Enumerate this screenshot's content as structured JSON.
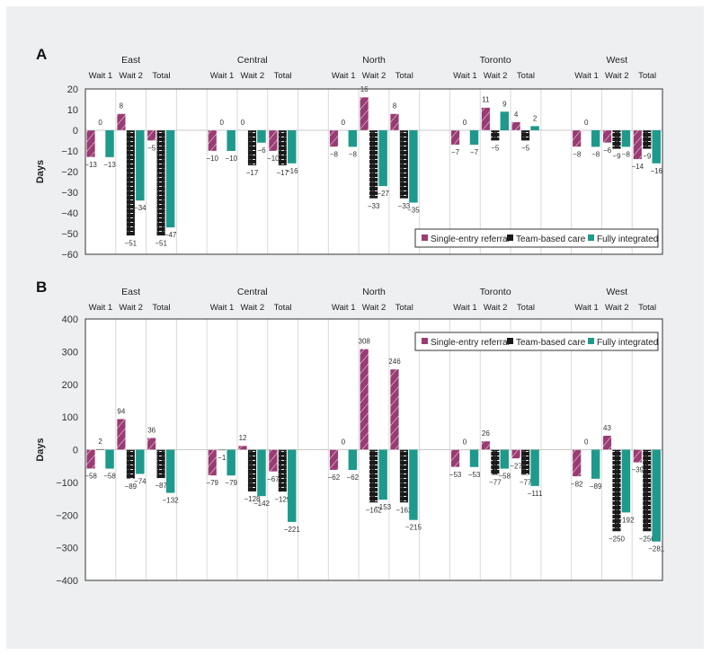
{
  "figure": {
    "legend": [
      {
        "key": "single",
        "label": "Single-entry referral",
        "color": "#9a3b74"
      },
      {
        "key": "team",
        "label": "Team-based care",
        "color": "#1a1a1a"
      },
      {
        "key": "full",
        "label": "Fully integrated",
        "color": "#1e9a8c"
      }
    ]
  },
  "chart_data": [
    {
      "panel": "A",
      "type": "bar",
      "ylabel": "Days",
      "ylim": [
        -60,
        20
      ],
      "yticks": [
        20,
        10,
        0,
        -10,
        -20,
        -30,
        -40,
        -50,
        -60
      ],
      "legend_position": "bottom-right",
      "grid": "vertical",
      "regions": [
        "East",
        "Central",
        "North",
        "Toronto",
        "West"
      ],
      "categories": [
        "Wait 1",
        "Wait 2",
        "Total"
      ],
      "series": [
        {
          "name": "Single-entry referral",
          "key": "single",
          "values": [
            [
              -13,
              8,
              -5
            ],
            [
              -10,
              0,
              -10
            ],
            [
              -8,
              16,
              8
            ],
            [
              -7,
              11,
              4
            ],
            [
              -8,
              -6,
              -14
            ]
          ]
        },
        {
          "name": "Team-based care",
          "key": "team",
          "values": [
            [
              0,
              -51,
              -51
            ],
            [
              0,
              -17,
              -17
            ],
            [
              0,
              -33,
              -33
            ],
            [
              0,
              -5,
              -5
            ],
            [
              0,
              -9,
              -9
            ]
          ]
        },
        {
          "name": "Fully integrated",
          "key": "full",
          "values": [
            [
              -13,
              -34,
              -47
            ],
            [
              -10,
              -6,
              -16
            ],
            [
              -8,
              -27,
              -35
            ],
            [
              -7,
              9,
              2
            ],
            [
              -8,
              -8,
              -16
            ]
          ]
        }
      ]
    },
    {
      "panel": "B",
      "type": "bar",
      "ylabel": "Days",
      "ylim": [
        -400,
        400
      ],
      "yticks": [
        400,
        300,
        200,
        100,
        0,
        -100,
        -200,
        -300,
        -400
      ],
      "legend_position": "top-right",
      "grid": "vertical",
      "regions": [
        "East",
        "Central",
        "North",
        "Toronto",
        "West"
      ],
      "categories": [
        "Wait 1",
        "Wait 2",
        "Total"
      ],
      "series": [
        {
          "name": "Single-entry referral",
          "key": "single",
          "values": [
            [
              -58,
              94,
              36
            ],
            [
              -79,
              12,
              -67
            ],
            [
              -62,
              308,
              246
            ],
            [
              -53,
              26,
              -27
            ],
            [
              -82,
              43,
              -39
            ]
          ]
        },
        {
          "name": "Team-based care",
          "key": "team",
          "values": [
            [
              2,
              -89,
              -87
            ],
            [
              -1,
              -128,
              -129
            ],
            [
              0,
              -162,
              -162
            ],
            [
              0,
              -77,
              -77
            ],
            [
              0,
              -250,
              -250
            ]
          ]
        },
        {
          "name": "Fully integrated",
          "key": "full",
          "values": [
            [
              -58,
              -74,
              -132
            ],
            [
              -79,
              -142,
              -221
            ],
            [
              -62,
              -153,
              -215
            ],
            [
              -53,
              -58,
              -111
            ],
            [
              -89,
              -192,
              -281
            ]
          ]
        }
      ]
    }
  ]
}
